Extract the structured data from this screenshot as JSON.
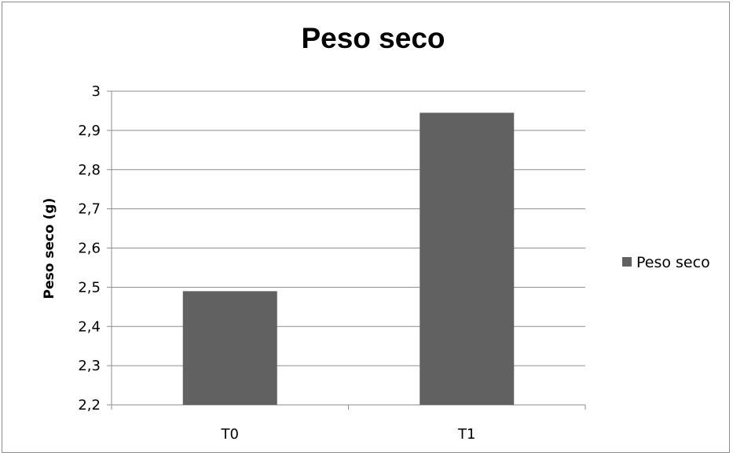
{
  "chart_data": {
    "type": "bar",
    "title": "Peso seco",
    "xlabel": "",
    "ylabel": "Peso seco (g)",
    "categories": [
      "T0",
      "T1"
    ],
    "series": [
      {
        "name": "Peso seco",
        "values": [
          2.49,
          2.945
        ],
        "color": "#616161"
      }
    ],
    "ylim": [
      2.2,
      3
    ],
    "yticks": [
      2.2,
      2.3,
      2.4,
      2.5,
      2.6,
      2.7,
      2.8,
      2.9,
      3.0
    ],
    "ytick_labels": [
      "2,2",
      "2,3",
      "2,4",
      "2,5",
      "2,6",
      "2,7",
      "2,8",
      "2,9",
      "3"
    ],
    "grid": true,
    "legend_position": "right"
  },
  "colors": {
    "gridline": "#8c8c8c",
    "frame": "#8c8c8c"
  }
}
